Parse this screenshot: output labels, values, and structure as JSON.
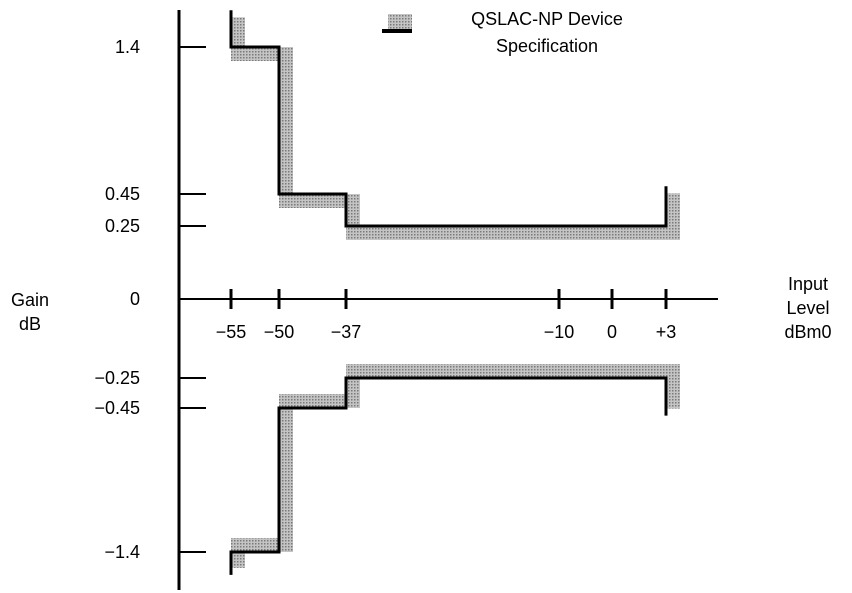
{
  "chart_data": {
    "type": "line",
    "title": "",
    "xlabel": "Input Level dBm0",
    "ylabel": "Gain dB",
    "x_ticks": [
      -55,
      -50,
      -37,
      -10,
      0,
      3
    ],
    "x_tick_labels": [
      "−55",
      "−50",
      "−37",
      "−10",
      "0",
      "+3"
    ],
    "y_ticks": [
      1.4,
      0.45,
      0.25,
      0,
      -0.25,
      -0.45,
      -1.4
    ],
    "y_tick_labels": [
      "1.4",
      "0.45",
      "0.25",
      "0",
      "−0.25",
      "−0.45",
      "−1.4"
    ],
    "legend": {
      "label": "QSLAC-NP Device Specification",
      "position": "top-right"
    },
    "series": [
      {
        "name": "upper-limit",
        "color": "#000000",
        "x": [
          -55,
          -55,
          -50,
          -50,
          -37,
          -37,
          3,
          3
        ],
        "y": [
          1.75,
          1.4,
          1.4,
          0.45,
          0.45,
          0.25,
          0.25,
          0.5
        ]
      },
      {
        "name": "lower-limit",
        "color": "#000000",
        "x": [
          -55,
          -55,
          -50,
          -50,
          -37,
          -37,
          3,
          3
        ],
        "y": [
          -1.6,
          -1.4,
          -1.4,
          -0.45,
          -0.45,
          -0.25,
          -0.25,
          -0.5
        ]
      }
    ]
  },
  "labels": {
    "y_axis_line1": "Gain",
    "y_axis_line2": "dB",
    "x_axis_line1": "Input",
    "x_axis_line2": "Level",
    "x_axis_line3": "dBm0",
    "legend_line1": "QSLAC-NP Device",
    "legend_line2": "Specification"
  },
  "colors": {
    "shade": "#a8a8a8",
    "line": "#000000"
  }
}
